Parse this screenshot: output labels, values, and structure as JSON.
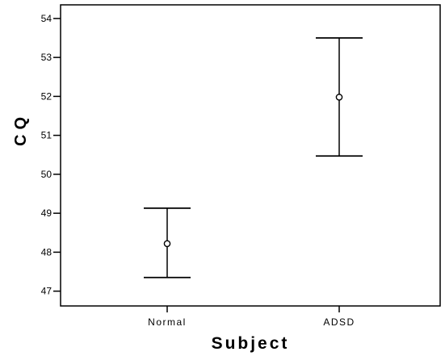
{
  "chart_data": {
    "type": "errorbar",
    "xlabel": "Subject",
    "ylabel": "CQ",
    "categories": [
      "Normal",
      "ADSD"
    ],
    "points": [
      {
        "category": "Normal",
        "mean": 48.22,
        "lower": 47.35,
        "upper": 49.13
      },
      {
        "category": "ADSD",
        "mean": 51.98,
        "lower": 50.47,
        "upper": 53.5
      }
    ],
    "ylim": [
      46.62,
      54.35
    ],
    "yticks": [
      47,
      48,
      49,
      50,
      51,
      52,
      53,
      54
    ],
    "ytick_labels": [
      "47",
      "48",
      "49",
      "50",
      "51",
      "52",
      "53",
      "54"
    ],
    "grid": false,
    "legend": "none"
  }
}
